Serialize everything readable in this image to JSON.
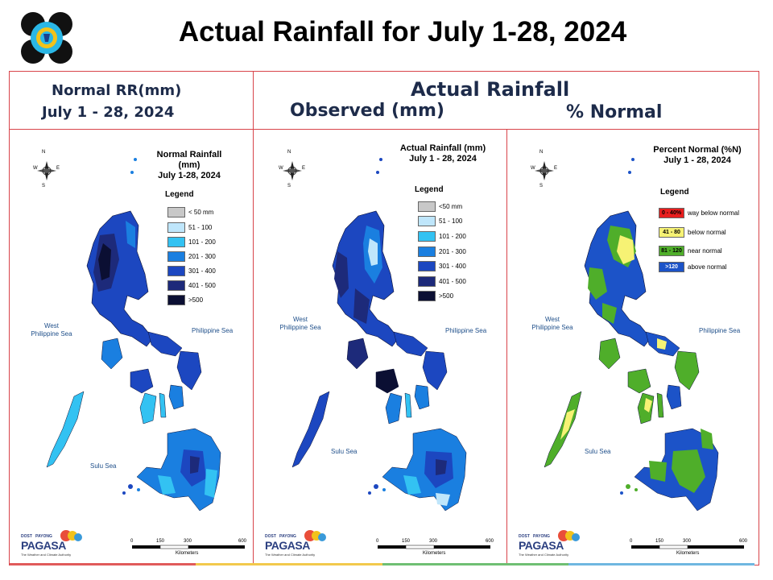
{
  "slide": {
    "title": "Actual Rainfall for July 1-28, 2024"
  },
  "headers": {
    "normal_line1": "Normal RR(mm)",
    "normal_line2": "July 1 - 28, 2024",
    "actual": "Actual Rainfall",
    "observed": "Observed (mm)",
    "percent": "% Normal"
  },
  "panels": [
    {
      "title_line1": "Normal Rainfall (mm)",
      "title_line2": "July 1-28, 2024",
      "legend_title": "Legend",
      "legend": [
        {
          "label": "< 50 mm",
          "color": "#c8c8c8"
        },
        {
          "label": "51 - 100",
          "color": "#bfe6fb"
        },
        {
          "label": "101 - 200",
          "color": "#33c2f2"
        },
        {
          "label": "201 - 300",
          "color": "#1a7fe0"
        },
        {
          "label": "301 - 400",
          "color": "#1c47c0"
        },
        {
          "label": "401 - 500",
          "color": "#1d2a7a"
        },
        {
          "label": ">500",
          "color": "#0b0f33"
        }
      ],
      "sea_west_1": "West",
      "sea_west_2": "Philippine Sea",
      "sea_east": "Philippine Sea",
      "sea_sulu": "Sulu Sea"
    },
    {
      "title_line1": "Actual Rainfall (mm)",
      "title_line2": "July 1 - 28, 2024",
      "legend_title": "Legend",
      "legend": [
        {
          "label": "<50 mm",
          "color": "#c8c8c8"
        },
        {
          "label": "51 - 100",
          "color": "#bfe6fb"
        },
        {
          "label": "101 - 200",
          "color": "#33c2f2"
        },
        {
          "label": "201 - 300",
          "color": "#1a7fe0"
        },
        {
          "label": "301 - 400",
          "color": "#1c47c0"
        },
        {
          "label": "401 - 500",
          "color": "#1d2a7a"
        },
        {
          "label": ">500",
          "color": "#0b0f33"
        }
      ],
      "sea_west_1": "West",
      "sea_west_2": "Philippine Sea",
      "sea_east": "Philippine Sea",
      "sea_sulu": "Sulu Sea"
    },
    {
      "title_line1": "Percent Normal (%N)",
      "title_line2": "July 1 - 28, 2024",
      "legend_title": "Legend",
      "legend": [
        {
          "swatch": "0 - 40%",
          "label": "way below normal",
          "color": "#e81e1e"
        },
        {
          "swatch": "41 - 80",
          "label": "below normal",
          "color": "#f6f274"
        },
        {
          "swatch": "81 - 120",
          "label": "near normal",
          "color": "#4fae2a"
        },
        {
          "swatch": ">120",
          "label": "above normal",
          "color": "#1c53c8"
        }
      ],
      "sea_west_1": "West",
      "sea_west_2": "Philippine Sea",
      "sea_east": "Philippine Sea",
      "sea_sulu": "Sulu Sea"
    }
  ],
  "compass": {
    "n": "N",
    "s": "S",
    "e": "E",
    "w": "W"
  },
  "scale": {
    "ticks": [
      "0",
      "150",
      "300",
      "600"
    ],
    "unit": "Kilometers"
  },
  "branding": {
    "dost": "DOST",
    "payong": "PAYONG",
    "name": "PAGASA",
    "tagline": "The Weather and Climate Authority"
  }
}
